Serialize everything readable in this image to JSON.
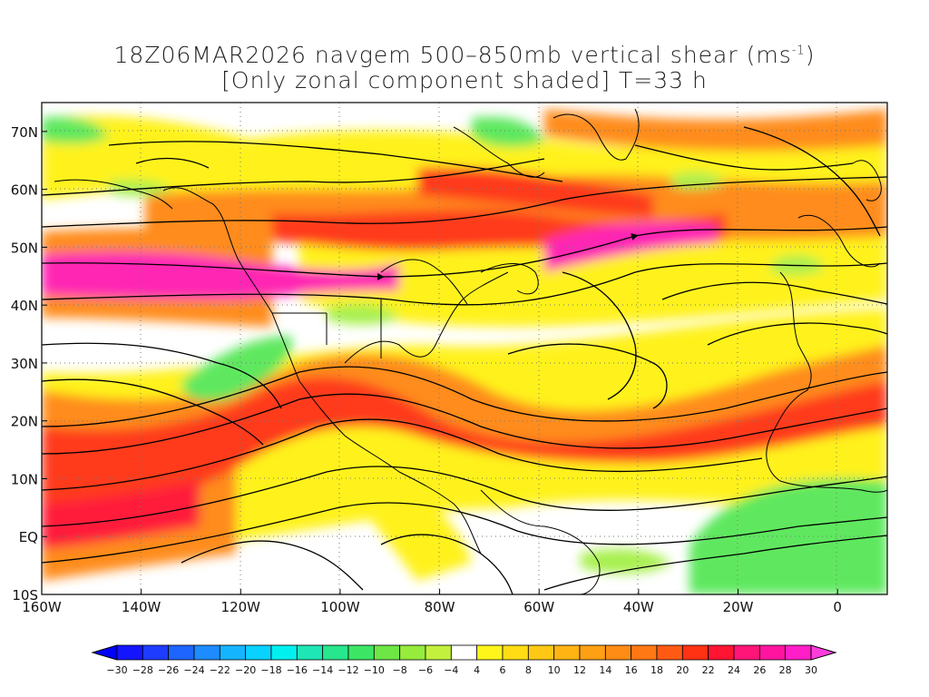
{
  "title": {
    "line1_main": "18Z06MAR2026 navgem 500–850mb vertical shear (ms",
    "line1_sup": "-1",
    "line1_end": ")",
    "line2": "[Only zonal component shaded] T=33 h"
  },
  "map": {
    "lon_range": [
      -160,
      10
    ],
    "lat_range": [
      -10,
      75
    ],
    "lon_ticks": [
      {
        "value": -160,
        "label": "160W"
      },
      {
        "value": -140,
        "label": "140W"
      },
      {
        "value": -120,
        "label": "120W"
      },
      {
        "value": -100,
        "label": "100W"
      },
      {
        "value": -80,
        "label": "80W"
      },
      {
        "value": -60,
        "label": "60W"
      },
      {
        "value": -40,
        "label": "40W"
      },
      {
        "value": -20,
        "label": "20W"
      },
      {
        "value": 0,
        "label": "0"
      }
    ],
    "lat_ticks": [
      {
        "value": -10,
        "label": "10S"
      },
      {
        "value": 0,
        "label": "EQ"
      },
      {
        "value": 10,
        "label": "10N"
      },
      {
        "value": 20,
        "label": "20N"
      },
      {
        "value": 30,
        "label": "30N"
      },
      {
        "value": 40,
        "label": "40N"
      },
      {
        "value": 50,
        "label": "50N"
      },
      {
        "value": 60,
        "label": "60N"
      },
      {
        "value": 70,
        "label": "70N"
      }
    ],
    "shading_colors": {
      "white": "#ffffff",
      "yellow": "#fff21a",
      "orange": "#ff8c1a",
      "red_orange": "#ff4a14",
      "red": "#ff1f3a",
      "magenta": "#ff28b4",
      "green": "#5ee85e",
      "lightgreen": "#a8f050"
    }
  },
  "colorbar": {
    "labels": [
      "-30",
      "-28",
      "-26",
      "-24",
      "-22",
      "-20",
      "-18",
      "-16",
      "-14",
      "-12",
      "-10",
      "-8",
      "-6",
      "-4",
      "4",
      "6",
      "8",
      "10",
      "12",
      "14",
      "16",
      "18",
      "20",
      "22",
      "24",
      "26",
      "28",
      "30"
    ],
    "colors": [
      "#1414ff",
      "#1e3cff",
      "#1e64ff",
      "#1e8cff",
      "#14b4ff",
      "#0ad2ff",
      "#00f0f0",
      "#1ee6b4",
      "#28e68c",
      "#3ce664",
      "#6ee646",
      "#96eb3c",
      "#c3f03c",
      "#ffffff",
      "#fff51a",
      "#ffdc14",
      "#ffc814",
      "#ffb414",
      "#ffa014",
      "#ff8c14",
      "#ff7814",
      "#ff5a14",
      "#ff3214",
      "#ff1432",
      "#ff1478",
      "#ff14a0",
      "#ff1ec8"
    ],
    "left_cap_color": "#0000ff",
    "right_cap_color": "#ff3cdc"
  }
}
